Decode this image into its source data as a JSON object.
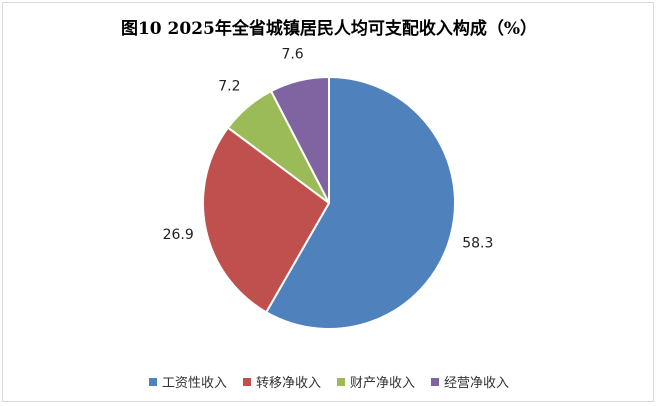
{
  "chart_data": {
    "type": "pie",
    "title": "图10  2025年全省城镇居民人均可支配收入构成（%）",
    "categories": [
      "工资性收入",
      "转移净收入",
      "财产净收入",
      "经营净收入"
    ],
    "values": [
      58.3,
      26.9,
      7.2,
      7.6
    ],
    "value_labels": [
      "58.3",
      "26.9",
      "7.2",
      "7.6"
    ],
    "colors": [
      "#4f81bd",
      "#c0504d",
      "#9bbb59",
      "#8064a2"
    ],
    "legend_position": "bottom",
    "start_angle_deg": 0,
    "direction": "clockwise"
  }
}
